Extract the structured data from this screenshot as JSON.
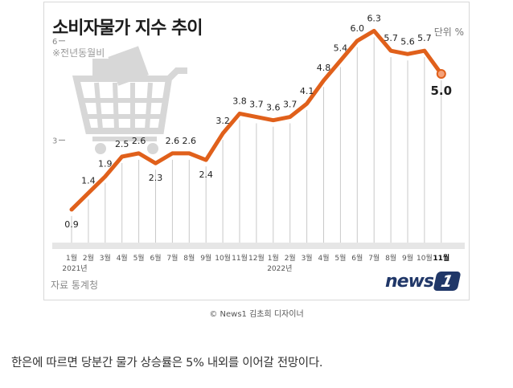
{
  "figure": {
    "title": "소비자물가 지수 추이",
    "unit": "단위 %",
    "subtitle": "※전년동월비",
    "source": "자료 통계청",
    "logo_text": "news",
    "logo_badge": "1"
  },
  "caption": "© News1 김초희 디자이너",
  "body_text": "한은에 따르면 당분간 물가 상승률은 5% 내외를 이어갈 전망이다.",
  "chart_data": {
    "type": "line",
    "x": [
      "1월",
      "2월",
      "3월",
      "4월",
      "5월",
      "6월",
      "7월",
      "8월",
      "9월",
      "10월",
      "11월",
      "12월",
      "1월",
      "2월",
      "3월",
      "4월",
      "5월",
      "6월",
      "7월",
      "8월",
      "9월",
      "10월",
      "11월"
    ],
    "years": [
      {
        "label": "2021년",
        "at": 0
      },
      {
        "label": "2022년",
        "at": 12
      }
    ],
    "values": [
      0.9,
      1.4,
      1.9,
      2.5,
      2.6,
      2.3,
      2.6,
      2.6,
      2.4,
      3.2,
      3.8,
      3.7,
      3.6,
      3.7,
      4.1,
      4.8,
      5.4,
      6.0,
      6.3,
      5.7,
      5.6,
      5.7,
      5.0
    ],
    "y_ticks": [
      3,
      6
    ],
    "ylim": [
      0,
      6.8
    ],
    "highlight_last": true,
    "colors": {
      "line": "#e0601b",
      "last_point": "#e0601b",
      "grid": "#c9c9c9",
      "axis_band": "#e6e6e6"
    }
  }
}
